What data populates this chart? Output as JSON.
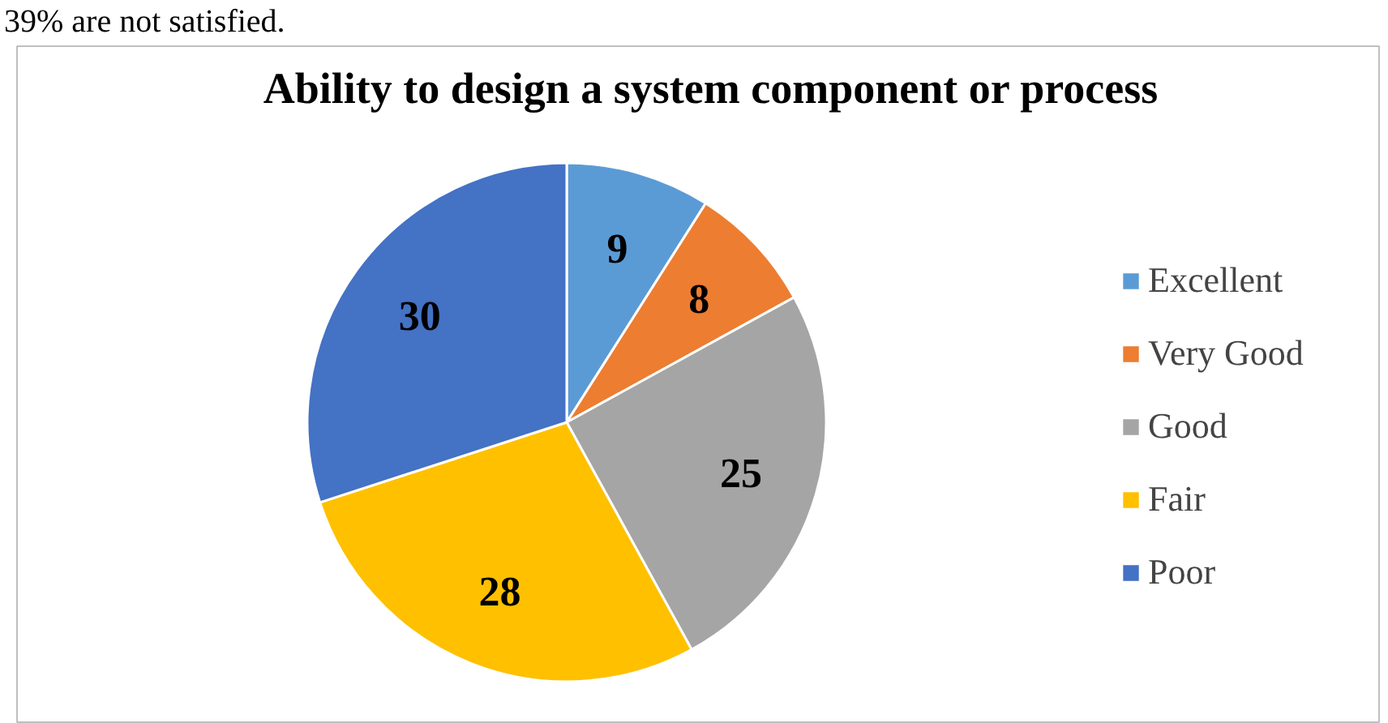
{
  "chart_data": {
    "type": "pie",
    "title": "Ability to design a system component or process",
    "categories": [
      "Excellent",
      "Very Good",
      "Good",
      "Fair",
      "Poor"
    ],
    "values": [
      9,
      8,
      25,
      28,
      30
    ],
    "colors": [
      "#5b9bd5",
      "#ed7d31",
      "#a5a5a5",
      "#ffc000",
      "#4472c4"
    ],
    "data_labels": true,
    "legend": "right",
    "annotations": [
      "39% are not satisfied."
    ]
  }
}
